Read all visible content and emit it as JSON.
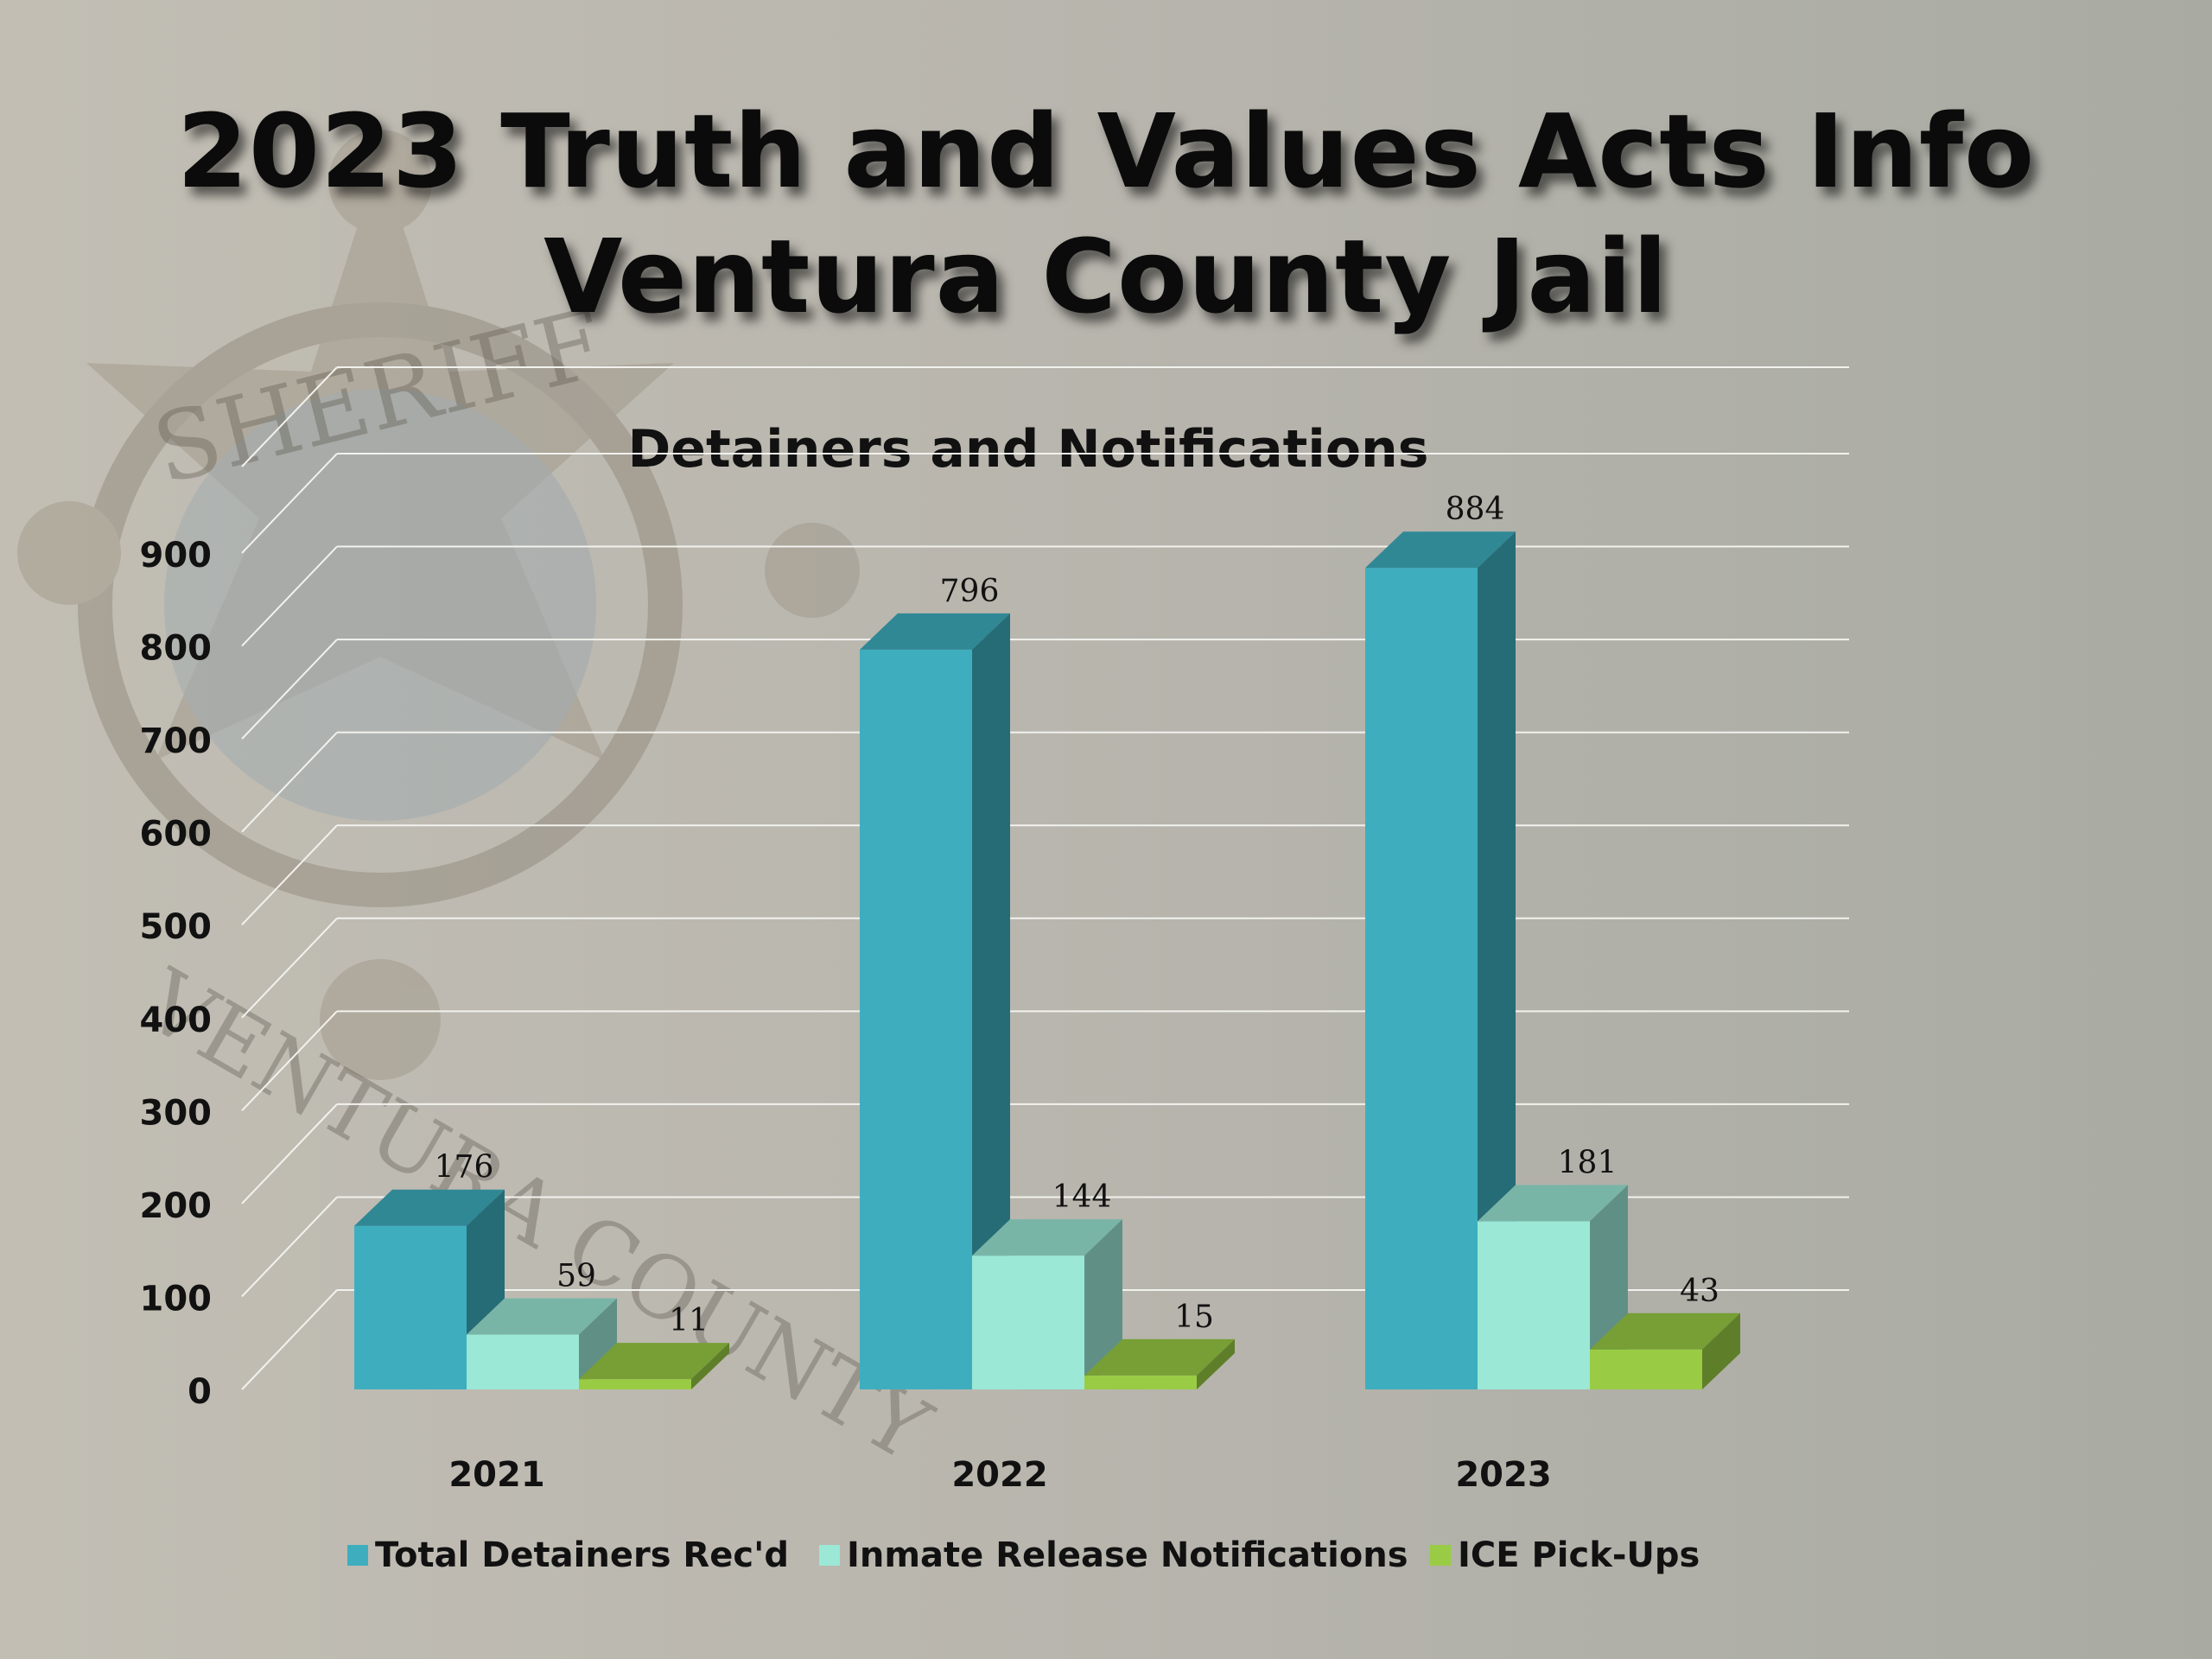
{
  "slide": {
    "title_line_1": "2023 Truth and Values Acts Info",
    "title_line_2": "Ventura County Jail",
    "badge_watermark": {
      "icon": "sheriff-star-badge-icon",
      "text_top": "SHERIFF",
      "text_bottom": "VENTURA COUNTY"
    }
  },
  "colors": {
    "background": "#bdbab2",
    "series_1": "#3eaebf",
    "series_2": "#9be8d6",
    "series_3": "#99cc44"
  },
  "chart_data": {
    "type": "bar",
    "style": "3d-clustered-column",
    "title": "Detainers and Notifications",
    "categories": [
      "2021",
      "2022",
      "2023"
    ],
    "series": [
      {
        "name": "Total Detainers Rec'd",
        "values": [
          176,
          796,
          884
        ],
        "labels": [
          "176",
          "796",
          "884"
        ]
      },
      {
        "name": "Inmate Release Notifications",
        "values": [
          59,
          144,
          181
        ],
        "labels": [
          "59",
          "144",
          "181"
        ]
      },
      {
        "name": "ICE Pick-Ups",
        "values": [
          11,
          15,
          43
        ],
        "labels": [
          "11",
          "15",
          "43"
        ]
      }
    ],
    "ylim": [
      0,
      900
    ],
    "yticks": [
      0,
      100,
      200,
      300,
      400,
      500,
      600,
      700,
      800,
      900
    ],
    "grid": true,
    "legend": "bottom"
  }
}
